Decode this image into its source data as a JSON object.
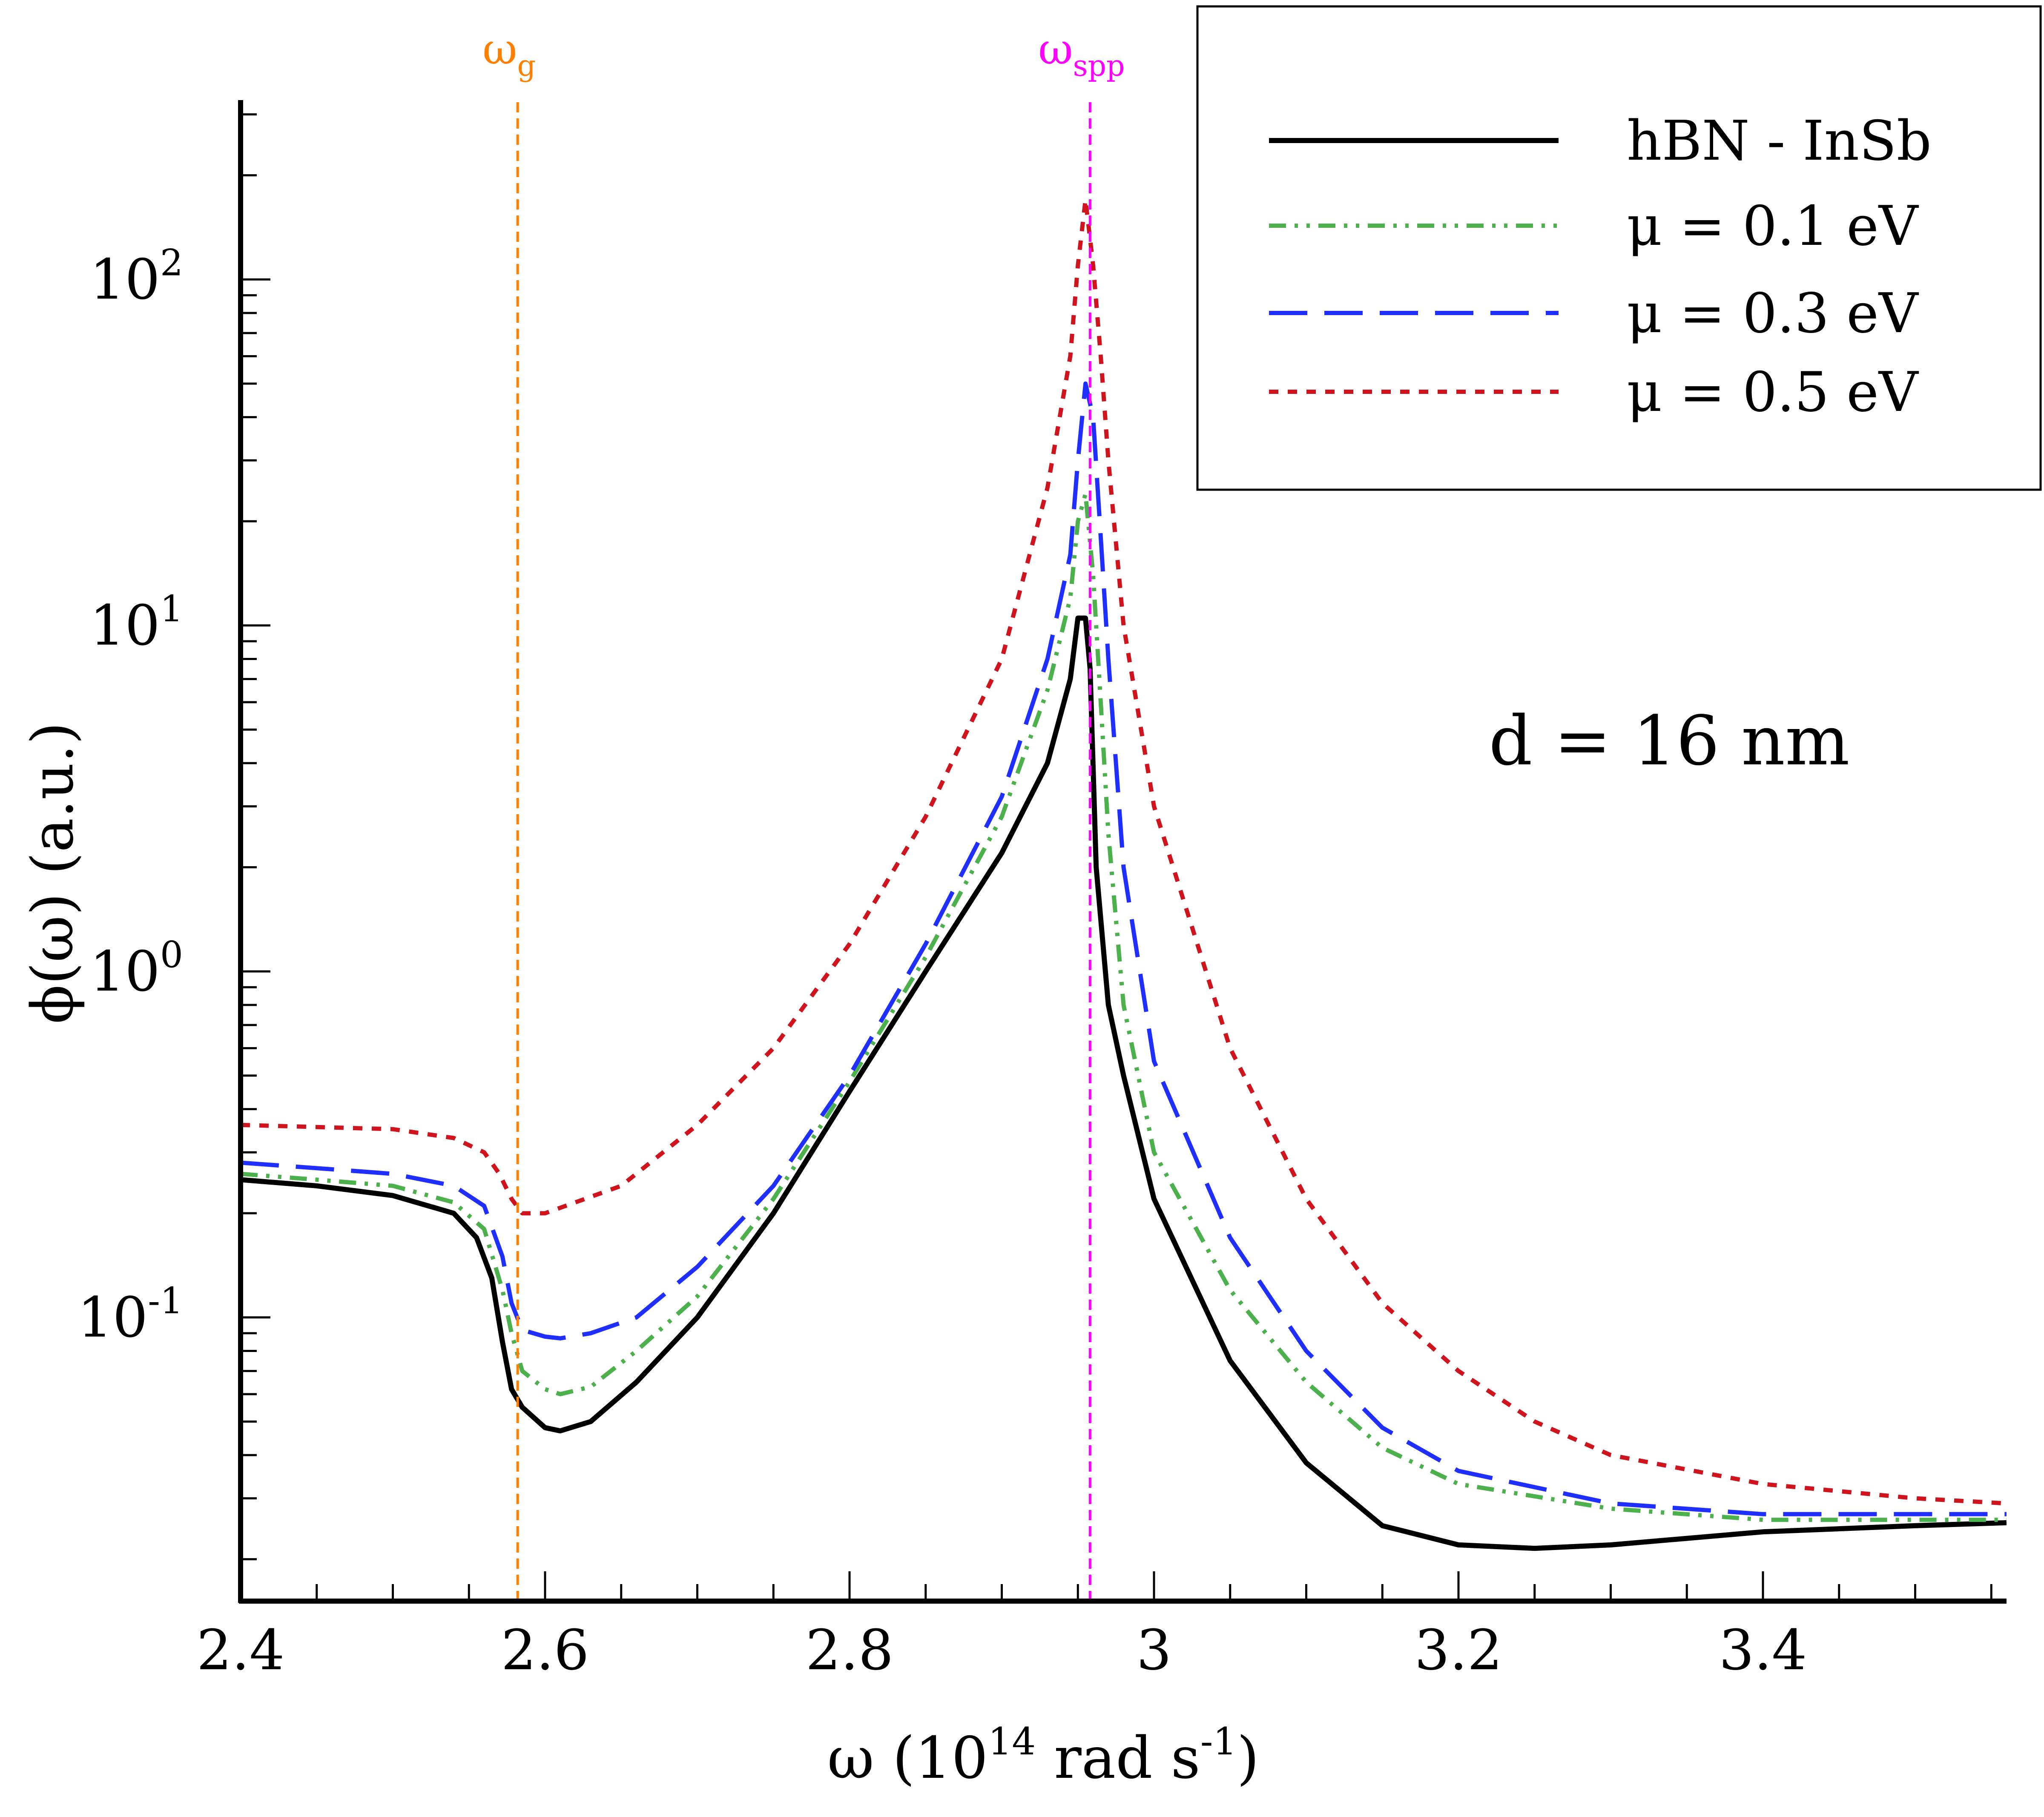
{
  "chart_data": {
    "type": "line",
    "xlabel": {
      "main": "ω (10",
      "exp": "14",
      "mid": " rad s",
      "exp2": "-1",
      "tail": ")"
    },
    "ylabel": "ϕ(ω) (a.u.)",
    "xlim": [
      2.4,
      3.56
    ],
    "ylim_log10": [
      -1.82,
      2.5
    ],
    "y_scale": "log",
    "x_ticks": [
      {
        "value": 2.4,
        "label": "2.4"
      },
      {
        "value": 2.6,
        "label": "2.6"
      },
      {
        "value": 2.8,
        "label": "2.8"
      },
      {
        "value": 3.0,
        "label": "3"
      },
      {
        "value": 3.2,
        "label": "3.2"
      },
      {
        "value": 3.4,
        "label": "3.4"
      }
    ],
    "y_ticks": [
      {
        "value": 0.1,
        "base": "10",
        "exp": "-1"
      },
      {
        "value": 1,
        "base": "10",
        "exp": "0"
      },
      {
        "value": 10,
        "base": "10",
        "exp": "1"
      },
      {
        "value": 100,
        "base": "10",
        "exp": "2"
      }
    ],
    "vertical_lines": [
      {
        "x": 2.582,
        "symbol": "ω",
        "sub": "g",
        "color": "#ff8000"
      },
      {
        "x": 2.958,
        "symbol": "ω",
        "sub": "spp",
        "color": "#ff00ff"
      }
    ],
    "annotation": "d = 16 nm",
    "legend": {
      "position": "top-right"
    },
    "series": [
      {
        "name": "hBN - InSb",
        "color": "#000000",
        "dash": "",
        "points": [
          [
            2.4,
            0.25
          ],
          [
            2.45,
            0.24
          ],
          [
            2.5,
            0.225
          ],
          [
            2.54,
            0.2
          ],
          [
            2.555,
            0.17
          ],
          [
            2.565,
            0.13
          ],
          [
            2.572,
            0.085
          ],
          [
            2.578,
            0.062
          ],
          [
            2.585,
            0.055
          ],
          [
            2.6,
            0.048
          ],
          [
            2.61,
            0.047
          ],
          [
            2.63,
            0.05
          ],
          [
            2.66,
            0.065
          ],
          [
            2.7,
            0.1
          ],
          [
            2.75,
            0.2
          ],
          [
            2.8,
            0.45
          ],
          [
            2.85,
            1.0
          ],
          [
            2.9,
            2.2
          ],
          [
            2.93,
            4.0
          ],
          [
            2.945,
            7.0
          ],
          [
            2.95,
            10.5
          ],
          [
            2.955,
            10.5
          ],
          [
            2.958,
            7.5
          ],
          [
            2.962,
            2.0
          ],
          [
            2.97,
            0.8
          ],
          [
            2.98,
            0.5
          ],
          [
            3.0,
            0.22
          ],
          [
            3.05,
            0.075
          ],
          [
            3.1,
            0.038
          ],
          [
            3.15,
            0.025
          ],
          [
            3.2,
            0.022
          ],
          [
            3.25,
            0.0215
          ],
          [
            3.3,
            0.022
          ],
          [
            3.4,
            0.024
          ],
          [
            3.5,
            0.025
          ],
          [
            3.56,
            0.0255
          ]
        ]
      },
      {
        "name": "μ = 0.1 eV",
        "color": "#4cb04c",
        "dash": "40,20,8,20,8,20",
        "points": [
          [
            2.4,
            0.26
          ],
          [
            2.45,
            0.25
          ],
          [
            2.5,
            0.24
          ],
          [
            2.54,
            0.215
          ],
          [
            2.56,
            0.18
          ],
          [
            2.572,
            0.12
          ],
          [
            2.578,
            0.09
          ],
          [
            2.585,
            0.07
          ],
          [
            2.6,
            0.062
          ],
          [
            2.61,
            0.06
          ],
          [
            2.63,
            0.063
          ],
          [
            2.66,
            0.08
          ],
          [
            2.7,
            0.115
          ],
          [
            2.75,
            0.22
          ],
          [
            2.8,
            0.48
          ],
          [
            2.85,
            1.1
          ],
          [
            2.9,
            2.8
          ],
          [
            2.93,
            6.5
          ],
          [
            2.945,
            12.0
          ],
          [
            2.95,
            20.0
          ],
          [
            2.955,
            24.0
          ],
          [
            2.96,
            14.0
          ],
          [
            2.965,
            6.0
          ],
          [
            2.97,
            2.5
          ],
          [
            2.98,
            0.8
          ],
          [
            3.0,
            0.3
          ],
          [
            3.05,
            0.12
          ],
          [
            3.1,
            0.065
          ],
          [
            3.15,
            0.042
          ],
          [
            3.2,
            0.033
          ],
          [
            3.3,
            0.028
          ],
          [
            3.4,
            0.026
          ],
          [
            3.56,
            0.026
          ]
        ]
      },
      {
        "name": "μ = 0.3 eV",
        "color": "#1f2fff",
        "dash": "90,40",
        "points": [
          [
            2.4,
            0.28
          ],
          [
            2.45,
            0.27
          ],
          [
            2.5,
            0.26
          ],
          [
            2.54,
            0.24
          ],
          [
            2.56,
            0.21
          ],
          [
            2.572,
            0.15
          ],
          [
            2.578,
            0.11
          ],
          [
            2.585,
            0.092
          ],
          [
            2.6,
            0.088
          ],
          [
            2.61,
            0.087
          ],
          [
            2.63,
            0.09
          ],
          [
            2.66,
            0.1
          ],
          [
            2.7,
            0.14
          ],
          [
            2.75,
            0.24
          ],
          [
            2.8,
            0.5
          ],
          [
            2.85,
            1.2
          ],
          [
            2.9,
            3.2
          ],
          [
            2.93,
            8.0
          ],
          [
            2.945,
            16.0
          ],
          [
            2.95,
            30.0
          ],
          [
            2.955,
            50.0
          ],
          [
            2.96,
            40.0
          ],
          [
            2.965,
            18.0
          ],
          [
            2.97,
            8.0
          ],
          [
            2.98,
            2.0
          ],
          [
            3.0,
            0.55
          ],
          [
            3.05,
            0.17
          ],
          [
            3.1,
            0.08
          ],
          [
            3.15,
            0.048
          ],
          [
            3.2,
            0.036
          ],
          [
            3.3,
            0.029
          ],
          [
            3.4,
            0.027
          ],
          [
            3.56,
            0.027
          ]
        ]
      },
      {
        "name": "μ = 0.5 eV",
        "color": "#d0141e",
        "dash": "22,22",
        "points": [
          [
            2.4,
            0.36
          ],
          [
            2.45,
            0.355
          ],
          [
            2.5,
            0.35
          ],
          [
            2.54,
            0.33
          ],
          [
            2.56,
            0.3
          ],
          [
            2.57,
            0.26
          ],
          [
            2.578,
            0.22
          ],
          [
            2.585,
            0.2
          ],
          [
            2.6,
            0.2
          ],
          [
            2.65,
            0.24
          ],
          [
            2.7,
            0.36
          ],
          [
            2.75,
            0.6
          ],
          [
            2.8,
            1.2
          ],
          [
            2.85,
            2.8
          ],
          [
            2.9,
            8.0
          ],
          [
            2.93,
            25.0
          ],
          [
            2.945,
            60.0
          ],
          [
            2.95,
            110.0
          ],
          [
            2.955,
            170.0
          ],
          [
            2.96,
            110.0
          ],
          [
            2.965,
            60.0
          ],
          [
            2.97,
            30.0
          ],
          [
            2.98,
            10.0
          ],
          [
            3.0,
            3.0
          ],
          [
            3.05,
            0.6
          ],
          [
            3.1,
            0.22
          ],
          [
            3.15,
            0.11
          ],
          [
            3.2,
            0.07
          ],
          [
            3.25,
            0.05
          ],
          [
            3.3,
            0.04
          ],
          [
            3.4,
            0.033
          ],
          [
            3.5,
            0.03
          ],
          [
            3.56,
            0.029
          ]
        ]
      }
    ]
  }
}
